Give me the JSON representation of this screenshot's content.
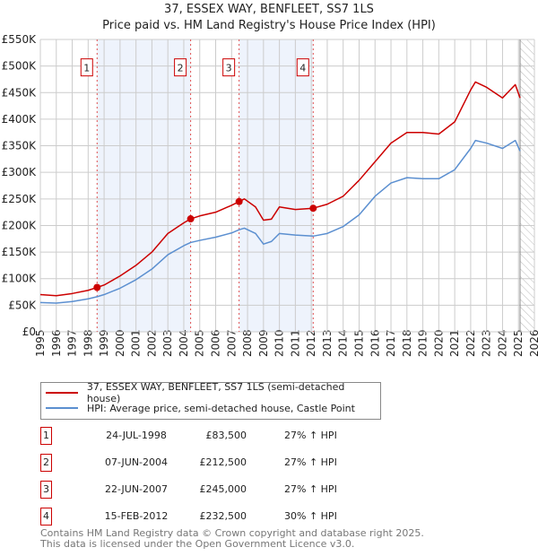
{
  "title": "37, ESSEX WAY, BENFLEET, SS7 1LS",
  "subtitle": "Price paid vs. HM Land Registry's House Price Index (HPI)",
  "chart_data": {
    "type": "line",
    "xlim": [
      1995,
      2026
    ],
    "ylim": [
      0,
      550000
    ],
    "x_ticks": [
      "1995",
      "1996",
      "1997",
      "1998",
      "1999",
      "2000",
      "2001",
      "2002",
      "2003",
      "2004",
      "2005",
      "2006",
      "2007",
      "2008",
      "2009",
      "2010",
      "2011",
      "2012",
      "2013",
      "2014",
      "2015",
      "2016",
      "2017",
      "2018",
      "2019",
      "2020",
      "2021",
      "2022",
      "2023",
      "2024",
      "2025",
      "2026"
    ],
    "y_ticks": [
      {
        "v": 0,
        "label": "£0"
      },
      {
        "v": 50000,
        "label": "£50K"
      },
      {
        "v": 100000,
        "label": "£100K"
      },
      {
        "v": 150000,
        "label": "£150K"
      },
      {
        "v": 200000,
        "label": "£200K"
      },
      {
        "v": 250000,
        "label": "£250K"
      },
      {
        "v": 300000,
        "label": "£300K"
      },
      {
        "v": 350000,
        "label": "£350K"
      },
      {
        "v": 400000,
        "label": "£400K"
      },
      {
        "v": 450000,
        "label": "£450K"
      },
      {
        "v": 500000,
        "label": "£500K"
      },
      {
        "v": 550000,
        "label": "£550K"
      }
    ],
    "grid": true,
    "series": [
      {
        "name": "37, ESSEX WAY, BENFLEET, SS7 1LS (semi-detached house)",
        "color": "#cc0000",
        "x": [
          1995,
          1996,
          1997,
          1998,
          1998.56,
          1999,
          2000,
          2001,
          2002,
          2003,
          2004,
          2004.43,
          2005,
          2006,
          2007,
          2007.47,
          2007.8,
          2008.5,
          2009,
          2009.5,
          2010,
          2011,
          2012.12,
          2013,
          2014,
          2015,
          2016,
          2017,
          2018,
          2019,
          2020,
          2021,
          2022,
          2022.3,
          2023,
          2024,
          2024.8,
          2025.1
        ],
        "y": [
          70000,
          68000,
          72000,
          78000,
          83500,
          88000,
          105000,
          125000,
          150000,
          185000,
          205000,
          212500,
          218000,
          225000,
          238000,
          245000,
          250000,
          235000,
          210000,
          212000,
          235000,
          230000,
          232500,
          240000,
          255000,
          285000,
          320000,
          355000,
          375000,
          375000,
          372000,
          395000,
          455000,
          470000,
          460000,
          440000,
          465000,
          440000
        ]
      },
      {
        "name": "HPI: Average price, semi-detached house, Castle Point",
        "color": "#5b8fd0",
        "x": [
          1995,
          1996,
          1997,
          1998,
          1998.56,
          1999,
          2000,
          2001,
          2002,
          2003,
          2004,
          2004.43,
          2005,
          2006,
          2007,
          2007.47,
          2007.8,
          2008.5,
          2009,
          2009.5,
          2010,
          2011,
          2012.12,
          2013,
          2014,
          2015,
          2016,
          2017,
          2018,
          2019,
          2020,
          2021,
          2022,
          2022.3,
          2023,
          2024,
          2024.8,
          2025.1
        ],
        "y": [
          55000,
          54000,
          57000,
          62000,
          66000,
          70000,
          82000,
          98000,
          118000,
          145000,
          162000,
          168000,
          172000,
          178000,
          186000,
          192000,
          195000,
          185000,
          165000,
          170000,
          185000,
          182000,
          180000,
          185000,
          198000,
          220000,
          255000,
          280000,
          290000,
          288000,
          288000,
          305000,
          345000,
          360000,
          355000,
          345000,
          360000,
          340000
        ]
      }
    ],
    "sales": [
      {
        "id": "1",
        "x": 1998.56,
        "y": 83500
      },
      {
        "id": "2",
        "x": 2004.43,
        "y": 212500
      },
      {
        "id": "3",
        "x": 2007.47,
        "y": 245000
      },
      {
        "id": "4",
        "x": 2012.12,
        "y": 232500
      }
    ],
    "shaded_ranges": [
      [
        1998.56,
        2004.43
      ],
      [
        2007.47,
        2012.12
      ]
    ],
    "forecast_from": 2025.1,
    "legend_placement": "bottom"
  },
  "legend": [
    {
      "label": "37, ESSEX WAY, BENFLEET, SS7 1LS (semi-detached house)",
      "color": "#cc0000"
    },
    {
      "label": "HPI: Average price, semi-detached house, Castle Point",
      "color": "#5b8fd0"
    }
  ],
  "transactions": [
    {
      "num": "1",
      "date": "24-JUL-1998",
      "price": "£83,500",
      "hpi": "27% ↑ HPI"
    },
    {
      "num": "2",
      "date": "07-JUN-2004",
      "price": "£212,500",
      "hpi": "27% ↑ HPI"
    },
    {
      "num": "3",
      "date": "22-JUN-2007",
      "price": "£245,000",
      "hpi": "27% ↑ HPI"
    },
    {
      "num": "4",
      "date": "15-FEB-2012",
      "price": "£232,500",
      "hpi": "30% ↑ HPI"
    }
  ],
  "footer": [
    "Contains HM Land Registry data © Crown copyright and database right 2025.",
    "This data is licensed under the Open Government Licence v3.0."
  ]
}
